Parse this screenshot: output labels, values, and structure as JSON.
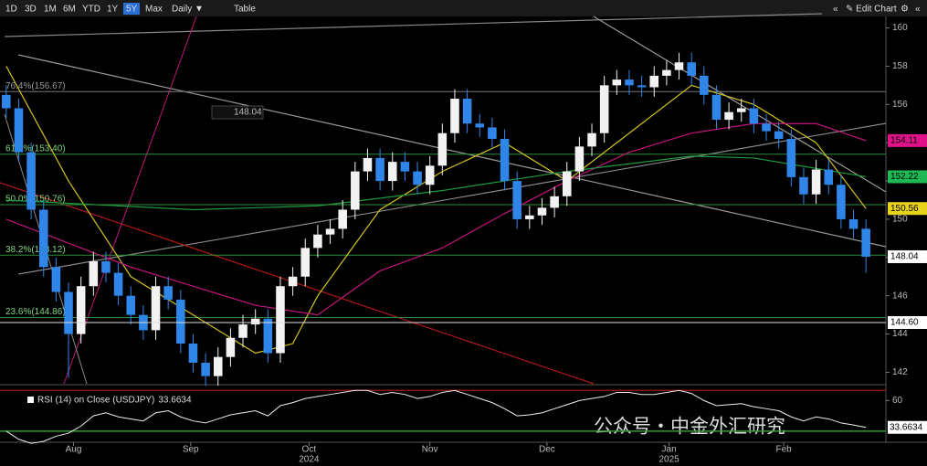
{
  "toolbar": {
    "ranges": [
      "1D",
      "3D",
      "1M",
      "6M",
      "YTD",
      "1Y",
      "5Y",
      "Max"
    ],
    "interval": "Daily ▼",
    "table": "Table",
    "collapse": "«",
    "edit": "✎ Edit Chart",
    "settings": "⚙",
    "expand": "«"
  },
  "watermark": "公众号・中金外汇研究",
  "chart_data": {
    "type": "candlestick",
    "up_color": "#f2f2f2",
    "down_color": "#2f86e8",
    "open": [
      156.5,
      155.8,
      153.5,
      150.5,
      147.5,
      146.2,
      144.0,
      146.5,
      147.8,
      147.2,
      146.0,
      145.0,
      144.2,
      146.5,
      145.8,
      143.5,
      142.5,
      141.8,
      142.8,
      143.8,
      144.5,
      144.8,
      143.0,
      146.5,
      147.0,
      148.5,
      149.2,
      149.5,
      150.5,
      152.5,
      153.2,
      152.0,
      153.0,
      152.5,
      151.8,
      152.8,
      154.5,
      156.3,
      155.0,
      154.8,
      154.2,
      152.0,
      150.0,
      150.2,
      150.6,
      151.2,
      152.5,
      153.8,
      154.5,
      157.0,
      157.3,
      157.0,
      156.9,
      157.5,
      157.8,
      158.2,
      157.5,
      156.5,
      155.2,
      155.6,
      155.8,
      155.0,
      154.6,
      154.2,
      152.2,
      151.3,
      152.6,
      151.8,
      150.0,
      149.5
    ],
    "high": [
      157.0,
      156.3,
      154.0,
      151.0,
      148.0,
      146.7,
      147.0,
      148.3,
      148.3,
      147.7,
      146.5,
      145.5,
      147.0,
      147.0,
      146.3,
      144.0,
      143.0,
      143.3,
      144.3,
      145.0,
      145.3,
      145.3,
      147.0,
      147.5,
      149.0,
      149.7,
      150.0,
      151.0,
      153.0,
      153.7,
      153.7,
      153.5,
      153.5,
      153.0,
      153.3,
      155.0,
      156.8,
      156.8,
      155.5,
      155.3,
      154.7,
      152.5,
      150.7,
      151.1,
      151.7,
      153.0,
      154.3,
      155.0,
      157.5,
      157.8,
      157.8,
      157.5,
      158.0,
      158.3,
      158.7,
      158.7,
      158.0,
      157.0,
      156.1,
      156.3,
      156.3,
      155.5,
      155.1,
      154.7,
      152.7,
      153.1,
      153.1,
      152.3,
      150.5,
      150.0
    ],
    "low": [
      155.3,
      153.0,
      150.0,
      147.0,
      145.7,
      141.7,
      143.5,
      146.0,
      146.7,
      145.5,
      144.5,
      143.7,
      143.7,
      145.3,
      143.0,
      142.0,
      141.3,
      141.3,
      142.3,
      143.3,
      144.0,
      142.5,
      142.5,
      146.0,
      146.5,
      148.0,
      148.7,
      149.0,
      150.0,
      152.0,
      151.5,
      151.5,
      152.0,
      151.3,
      151.3,
      152.3,
      154.0,
      154.5,
      154.3,
      153.7,
      151.5,
      149.5,
      149.5,
      149.7,
      150.1,
      150.7,
      152.0,
      153.3,
      154.0,
      156.5,
      156.5,
      156.4,
      156.4,
      157.0,
      157.3,
      157.0,
      156.0,
      154.7,
      154.7,
      155.1,
      154.5,
      154.1,
      153.7,
      151.7,
      150.8,
      150.8,
      151.3,
      149.5,
      149.0,
      147.2
    ],
    "close": [
      155.8,
      153.5,
      150.5,
      147.5,
      146.2,
      144.0,
      146.5,
      147.8,
      147.2,
      146.0,
      145.0,
      144.2,
      146.5,
      145.8,
      143.5,
      142.5,
      141.8,
      142.8,
      143.8,
      144.5,
      144.8,
      143.0,
      146.5,
      147.0,
      148.5,
      149.2,
      149.5,
      150.5,
      152.5,
      153.2,
      152.0,
      153.0,
      152.5,
      151.8,
      152.8,
      154.5,
      156.3,
      155.0,
      154.8,
      154.2,
      152.0,
      150.0,
      150.2,
      150.6,
      151.2,
      152.5,
      153.8,
      154.5,
      157.0,
      157.3,
      157.0,
      156.9,
      157.5,
      157.8,
      158.2,
      157.5,
      156.5,
      155.2,
      155.6,
      155.8,
      155.0,
      154.6,
      154.2,
      152.2,
      151.3,
      152.6,
      151.8,
      150.0,
      149.5,
      148.04
    ],
    "xlim": [
      -0.5,
      69.5
    ],
    "xticks": [
      {
        "value": 5.4,
        "label": "Aug"
      },
      {
        "value": 14.8,
        "label": "Sep"
      },
      {
        "value": 24.3,
        "label": "Oct"
      },
      {
        "value": 34.0,
        "label": "Nov"
      },
      {
        "value": 43.4,
        "label": "Dec"
      },
      {
        "value": 53.2,
        "label": "Jan"
      },
      {
        "value": 62.4,
        "label": "Feb"
      }
    ],
    "year_ticks": [
      {
        "value": 24.3,
        "label": "2024"
      },
      {
        "value": 53.2,
        "label": "2025"
      }
    ],
    "ylim": [
      141.4,
      160.6
    ],
    "yticks": [
      142,
      144,
      146,
      148,
      150,
      152,
      154,
      156,
      158,
      160
    ],
    "fib_levels": [
      {
        "value": 156.67,
        "label": "76.4%(156.67)"
      },
      {
        "value": 153.4,
        "label": "61.8%(153.40)"
      },
      {
        "value": 150.76,
        "label": "50.0%(150.76)"
      },
      {
        "value": 148.12,
        "label": "38.2%(148.12)"
      },
      {
        "value": 144.86,
        "label": "23.6%(144.86)"
      }
    ],
    "moving_averages": [
      {
        "color": "#d4c21c",
        "x": [
          0,
          5,
          10,
          15,
          20,
          23,
          25,
          30,
          35,
          40,
          45,
          50,
          55,
          60,
          65,
          69
        ],
        "values": [
          158,
          152,
          147,
          145,
          143,
          143.5,
          146,
          150.5,
          152.5,
          154,
          152,
          154.5,
          157,
          156,
          154,
          150.56
        ]
      },
      {
        "color": "#c2177a",
        "x": [
          0,
          10,
          20,
          25,
          30,
          35,
          40,
          45,
          50,
          55,
          60,
          65,
          69
        ],
        "values": [
          150,
          147.5,
          145.5,
          145,
          147.3,
          148.5,
          150.3,
          152,
          153.5,
          154.5,
          155,
          155,
          154.11
        ]
      },
      {
        "color": "#1f9a3c",
        "x": [
          0,
          15,
          25,
          35,
          45,
          55,
          60,
          69
        ],
        "values": [
          151,
          150.5,
          150.7,
          151.5,
          152.5,
          153.3,
          153.2,
          152.22
        ]
      }
    ],
    "price_markers": [
      {
        "value": 154.11,
        "color": "#e0128a"
      },
      {
        "value": 152.22,
        "color": "#1db954"
      },
      {
        "value": 150.56,
        "color": "#e8d21a"
      },
      {
        "value": 148.04,
        "color": "#ffffff"
      },
      {
        "value": 144.6,
        "label": "144.60",
        "color": "#ffffff"
      }
    ],
    "cursor_label": 148.04,
    "rsi": {
      "title": "RSI (14) on Close (USDJPY)",
      "last": 33.6634,
      "ylim": [
        20,
        72
      ],
      "yticks": [
        60
      ],
      "levels": [
        30,
        70
      ],
      "values": [
        30,
        22,
        18,
        20,
        25,
        28,
        35,
        45,
        48,
        44,
        42,
        40,
        48,
        50,
        44,
        40,
        38,
        42,
        46,
        48,
        50,
        45,
        55,
        58,
        62,
        64,
        66,
        68,
        70,
        70,
        66,
        68,
        66,
        62,
        64,
        68,
        70,
        66,
        62,
        58,
        52,
        45,
        46,
        48,
        52,
        56,
        60,
        62,
        64,
        68,
        68,
        66,
        66,
        68,
        70,
        67,
        60,
        55,
        56,
        57,
        54,
        52,
        50,
        44,
        40,
        44,
        42,
        38,
        36,
        33.6634
      ]
    }
  }
}
